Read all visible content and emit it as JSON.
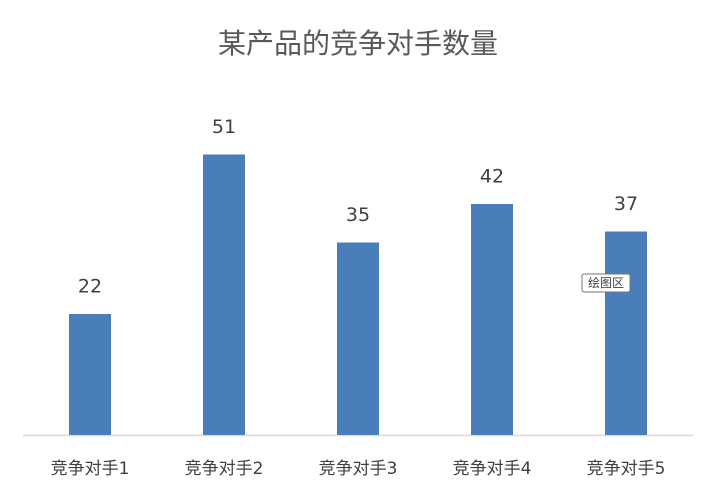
{
  "chart_data": {
    "type": "bar",
    "title": "某产品的竞争对手数量",
    "categories": [
      "竞争对手1",
      "竞争对手2",
      "竞争对手3",
      "竞争对手4",
      "竞争对手5"
    ],
    "values": [
      22,
      51,
      35,
      42,
      37
    ],
    "color": "#4a7ebb",
    "ylim": [
      0,
      60
    ],
    "tooltip": "绘图区"
  }
}
